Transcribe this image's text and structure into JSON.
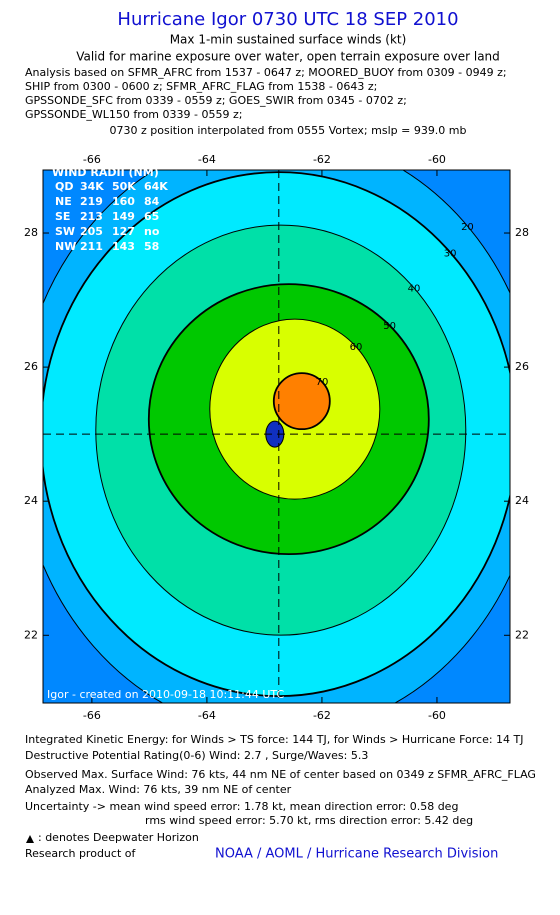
{
  "header": {
    "title": "Hurricane Igor 0730 UTC 18 SEP 2010",
    "subtitle": "Max 1-min sustained surface winds (kt)",
    "validity": "Valid for marine exposure over water, open terrain exposure over land",
    "analysis_lines": [
      "Analysis based on SFMR_AFRC from 1537 - 0647 z; MOORED_BUOY from 0309 - 0949 z;",
      "SHIP from 0300 - 0600 z; SFMR_AFRC_FLAG from 1538 - 0643 z;",
      "GPSSONDE_SFC from 0339 - 0559 z; GOES_SWIR from 0345 - 0702 z;",
      "GPSSONDE_WL150 from 0339 - 0559 z;"
    ],
    "position_note": "0730 z position interpolated from 0555 Vortex; mslp = 939.0 mb"
  },
  "chart_data": {
    "type": "contour",
    "xlim": [
      -66.85,
      -58.73
    ],
    "ylim": [
      20.99,
      28.94
    ],
    "xticks": [
      -66,
      -64,
      -62,
      -60
    ],
    "yticks": [
      22,
      24,
      26,
      28
    ],
    "center": [
      -62.75,
      25.0
    ],
    "contours": [
      {
        "level": 20,
        "color": "#00b4ff"
      },
      {
        "level": 30,
        "color": "#00eaff"
      },
      {
        "level": 40,
        "color": "#00e0a8"
      },
      {
        "level": 50,
        "color": "#00c800"
      },
      {
        "level": 60,
        "color": "#d8ff00"
      },
      {
        "level": 70,
        "color": "#ff8000"
      }
    ],
    "wind_radii": {
      "title": "WIND RADII (NM)",
      "rows": [
        [
          "QD",
          "34K",
          "50K",
          "64K"
        ],
        [
          "NE",
          "219",
          "160",
          "84"
        ],
        [
          "SE",
          "213",
          "149",
          "65"
        ],
        [
          "SW",
          "205",
          "127",
          "no"
        ],
        [
          "NW",
          "211",
          "143",
          "58"
        ]
      ]
    },
    "credit": "Igor - created on 2010-09-18 10:11:44 UTC"
  },
  "footer": {
    "lines": [
      "Integrated Kinetic Energy:  for Winds > TS force: 144 TJ,  for Winds > Hurricane Force: 14 TJ",
      "Destructive Potential Rating(0-6)   Wind: 2.7 , Surge/Waves: 5.3",
      "Observed Max. Surface Wind: 76 kts, 44 nm NE of center based on 0349 z SFMR_AFRC_FLAG",
      "Analyzed Max. Wind: 76 kts, 39 nm NE of center",
      "Uncertainty -> mean wind speed error: 1.78 kt,   mean direction error: 0.58 deg",
      "rms wind speed error: 5.70 kt,   rms direction error: 5.42 deg"
    ],
    "legend_note": ": denotes Deepwater Horizon",
    "research_label": "Research product of",
    "research_org": "NOAA / AOML / Hurricane Research Division"
  }
}
